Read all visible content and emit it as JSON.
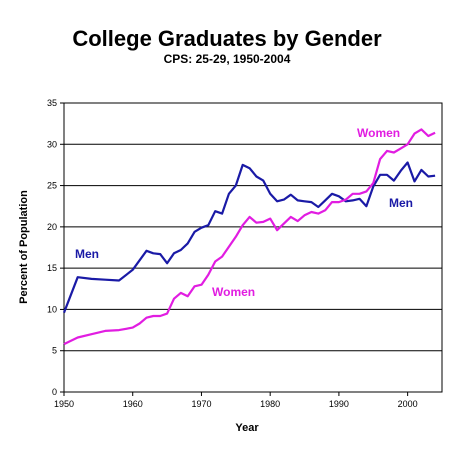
{
  "chart_data": {
    "type": "line",
    "title": "College Graduates by Gender",
    "subtitle": "CPS: 25-29, 1950-2004",
    "xlabel": "Year",
    "ylabel": "Percent of Population",
    "xlim": [
      1950,
      2005
    ],
    "ylim": [
      0,
      35
    ],
    "xticks": [
      1950,
      1960,
      1970,
      1980,
      1990,
      2000
    ],
    "yticks": [
      0,
      5,
      10,
      15,
      20,
      25,
      30,
      35
    ],
    "grid": "horizontal",
    "legend": "none",
    "series": [
      {
        "name": "Men",
        "color": "#1a1aa6",
        "labels": [
          "Men",
          "Men"
        ],
        "x": [
          1950,
          1952,
          1954,
          1956,
          1958,
          1960,
          1962,
          1963,
          1964,
          1965,
          1966,
          1967,
          1968,
          1969,
          1970,
          1971,
          1972,
          1973,
          1974,
          1975,
          1976,
          1977,
          1978,
          1979,
          1980,
          1981,
          1982,
          1983,
          1984,
          1985,
          1986,
          1987,
          1988,
          1989,
          1990,
          1991,
          1992,
          1993,
          1994,
          1995,
          1996,
          1997,
          1998,
          1999,
          2000,
          2001,
          2002,
          2003,
          2004
        ],
        "y": [
          9.6,
          13.9,
          13.7,
          13.6,
          13.5,
          14.8,
          17.1,
          16.8,
          16.7,
          15.6,
          16.8,
          17.2,
          18.0,
          19.4,
          19.9,
          20.2,
          21.9,
          21.6,
          24.0,
          25.0,
          27.5,
          27.1,
          26.1,
          25.6,
          24.0,
          23.1,
          23.3,
          23.9,
          23.2,
          23.1,
          23.0,
          22.4,
          23.2,
          24.0,
          23.7,
          23.1,
          23.2,
          23.4,
          22.5,
          24.9,
          26.3,
          26.3,
          25.6,
          26.8,
          27.8,
          25.5,
          26.9,
          26.1,
          26.2
        ]
      },
      {
        "name": "Women",
        "color": "#e11de1",
        "labels": [
          "Women",
          "Women"
        ],
        "x": [
          1950,
          1952,
          1954,
          1956,
          1958,
          1960,
          1961,
          1962,
          1963,
          1964,
          1965,
          1966,
          1967,
          1968,
          1969,
          1970,
          1971,
          1972,
          1973,
          1974,
          1975,
          1976,
          1977,
          1978,
          1979,
          1980,
          1981,
          1982,
          1983,
          1984,
          1985,
          1986,
          1987,
          1988,
          1989,
          1990,
          1991,
          1992,
          1993,
          1994,
          1995,
          1996,
          1997,
          1998,
          1999,
          2000,
          2001,
          2002,
          2003,
          2004
        ],
        "y": [
          5.8,
          6.6,
          7.0,
          7.4,
          7.5,
          7.8,
          8.3,
          9.0,
          9.2,
          9.2,
          9.5,
          11.3,
          12.0,
          11.6,
          12.8,
          13.0,
          14.2,
          15.8,
          16.4,
          17.6,
          18.8,
          20.2,
          21.2,
          20.5,
          20.6,
          21.0,
          19.6,
          20.4,
          21.2,
          20.7,
          21.4,
          21.8,
          21.6,
          22.0,
          23.0,
          23.0,
          23.3,
          24.0,
          24.0,
          24.3,
          25.3,
          28.2,
          29.2,
          29.0,
          29.5,
          30.0,
          31.3,
          31.8,
          31.0,
          31.4
        ]
      }
    ]
  }
}
